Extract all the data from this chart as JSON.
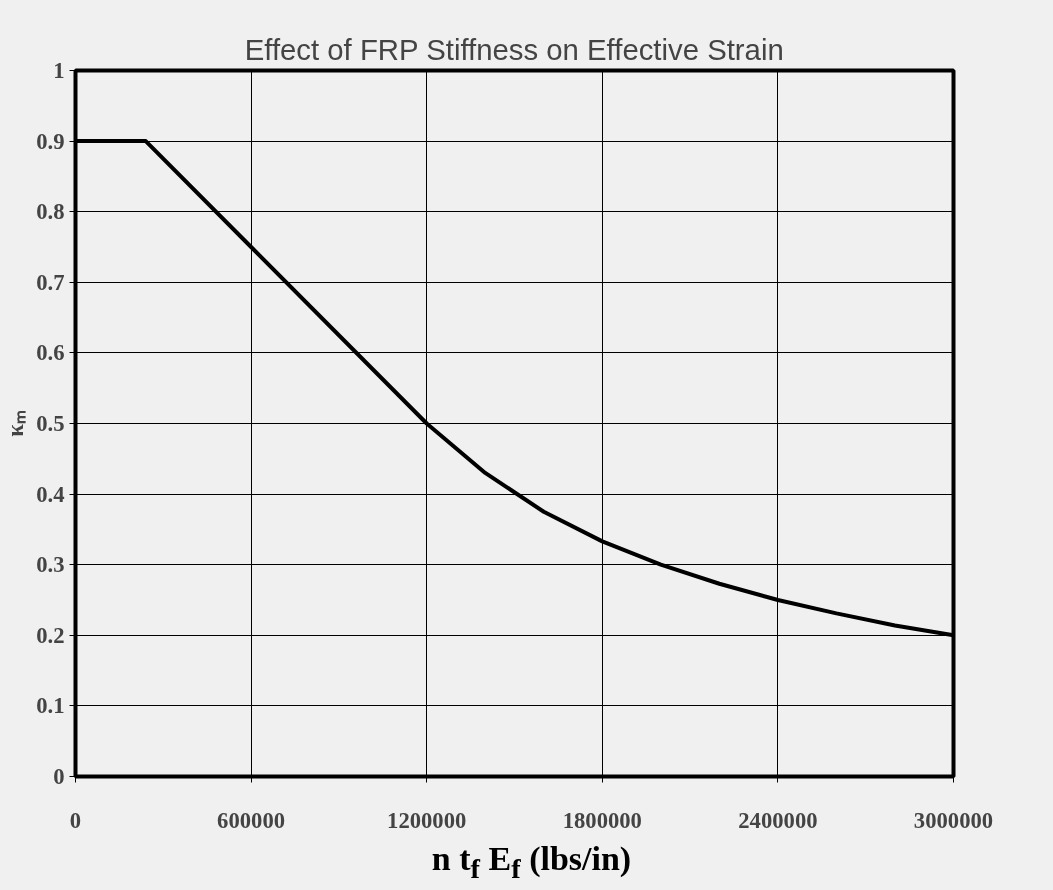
{
  "chart_data": {
    "type": "line",
    "title": "Effect of FRP Stiffness on Effective Strain",
    "xlabel": "n t$_{f}$ E$_{f}$ (lbs/in)",
    "ylabel": "κₘ",
    "x": [
      0,
      240000,
      600000,
      1200000,
      1400000,
      1600000,
      1800000,
      2000000,
      2200000,
      2400000,
      2600000,
      2800000,
      3000000
    ],
    "series": [
      {
        "color": "#000000",
        "values": [
          0.9,
          0.9,
          0.75,
          0.5,
          0.43,
          0.375,
          0.333,
          0.3,
          0.273,
          0.25,
          0.231,
          0.214,
          0.2
        ]
      }
    ],
    "xlim": [
      0,
      3000000
    ],
    "xticks": [
      0,
      600000,
      1200000,
      1800000,
      2400000,
      3000000
    ],
    "ylim": [
      0,
      1
    ],
    "yticks": [
      0,
      0.1,
      0.2,
      0.3,
      0.4,
      0.5,
      0.6,
      0.7,
      0.8,
      0.9,
      1
    ],
    "grid": true,
    "marker": "none",
    "line_style": "solid"
  }
}
